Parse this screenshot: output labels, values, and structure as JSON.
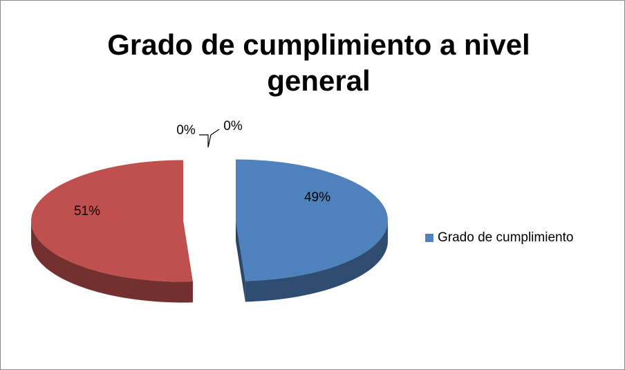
{
  "chart_data": {
    "type": "pie",
    "title": "Grado de cumplimiento a nivel general",
    "categories": [
      "Grado de cumplimiento",
      null,
      null,
      null
    ],
    "values": [
      49,
      51,
      0,
      0
    ],
    "value_labels": [
      "49%",
      "51%",
      "0%",
      "0%"
    ],
    "colors": [
      "#4f81bd",
      "#c0504d",
      "#9bbb59",
      "#8064a2"
    ],
    "legend": "right"
  }
}
